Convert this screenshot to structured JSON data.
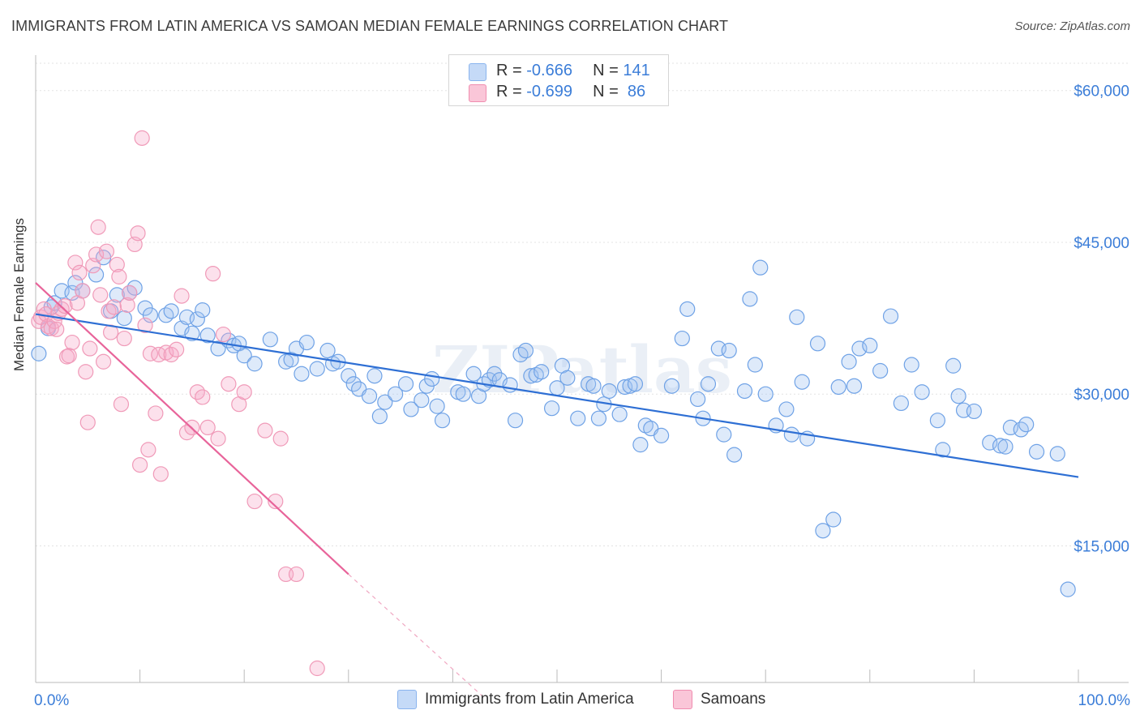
{
  "title": "IMMIGRANTS FROM LATIN AMERICA VS SAMOAN MEDIAN FEMALE EARNINGS CORRELATION CHART",
  "source": "Source: ZipAtlas.com",
  "watermark": "ZIPatlas",
  "legend_top": [
    {
      "r_label": "R = ",
      "r_value": "-0.666",
      "n_label": "N = ",
      "n_value": "141",
      "color": "#8ab4ee",
      "fill": "#c5daf7"
    },
    {
      "r_label": "R = ",
      "r_value": "-0.699",
      "n_label": "N = ",
      "n_value": " 86",
      "color": "#f08db0",
      "fill": "#fac6d8"
    }
  ],
  "chart_data": {
    "type": "scatter",
    "title": "IMMIGRANTS FROM LATIN AMERICA VS SAMOAN MEDIAN FEMALE EARNINGS CORRELATION CHART",
    "xlabel": "",
    "ylabel": "Median Female Earnings",
    "xlim": [
      0,
      100
    ],
    "ylim": [
      1500,
      63500
    ],
    "x_tick_labels": [
      "0.0%",
      "100.0%"
    ],
    "y_ticks": [
      15000,
      30000,
      45000,
      60000
    ],
    "y_tick_labels": [
      "$15,000",
      "$30,000",
      "$45,000",
      "$60,000"
    ],
    "grid": true,
    "legend_position": "bottom",
    "series": [
      {
        "name": "Immigrants from Latin America",
        "color": "#6fa2e6",
        "line_color": "#2e6fd4",
        "trend": {
          "x": [
            0,
            100
          ],
          "y": [
            37900,
            21800
          ]
        },
        "points": [
          [
            0.3,
            34000
          ],
          [
            1.2,
            36500
          ],
          [
            1.5,
            38600
          ],
          [
            1.8,
            39000
          ],
          [
            2.5,
            40200
          ],
          [
            3.5,
            40000
          ],
          [
            3.8,
            41000
          ],
          [
            4.5,
            40200
          ],
          [
            5.8,
            41800
          ],
          [
            6.5,
            43500
          ],
          [
            7.2,
            38200
          ],
          [
            7.8,
            39800
          ],
          [
            8.5,
            37500
          ],
          [
            9.0,
            40000
          ],
          [
            9.5,
            40500
          ],
          [
            10.5,
            38500
          ],
          [
            11.0,
            37800
          ],
          [
            12.5,
            37800
          ],
          [
            13.0,
            38200
          ],
          [
            14.0,
            36500
          ],
          [
            14.5,
            37600
          ],
          [
            15.0,
            36000
          ],
          [
            15.5,
            37400
          ],
          [
            16.0,
            38300
          ],
          [
            16.5,
            35800
          ],
          [
            17.5,
            34500
          ],
          [
            18.5,
            35300
          ],
          [
            19.0,
            34800
          ],
          [
            19.5,
            35000
          ],
          [
            20.0,
            33800
          ],
          [
            21.0,
            33000
          ],
          [
            22.5,
            35400
          ],
          [
            24.0,
            33200
          ],
          [
            24.5,
            33400
          ],
          [
            25.0,
            34500
          ],
          [
            25.5,
            32000
          ],
          [
            26.0,
            35100
          ],
          [
            27.0,
            32500
          ],
          [
            28.0,
            34300
          ],
          [
            28.5,
            33000
          ],
          [
            29.0,
            33200
          ],
          [
            30.0,
            31800
          ],
          [
            30.5,
            31000
          ],
          [
            31.0,
            30500
          ],
          [
            32.0,
            29800
          ],
          [
            32.5,
            31800
          ],
          [
            33.0,
            27800
          ],
          [
            33.5,
            29200
          ],
          [
            34.5,
            30000
          ],
          [
            35.5,
            31000
          ],
          [
            36.0,
            28500
          ],
          [
            37.0,
            29400
          ],
          [
            37.5,
            30800
          ],
          [
            38.0,
            31500
          ],
          [
            38.5,
            28800
          ],
          [
            39.0,
            27400
          ],
          [
            40.5,
            30200
          ],
          [
            41.0,
            30000
          ],
          [
            42.0,
            32000
          ],
          [
            42.5,
            29800
          ],
          [
            43.0,
            31000
          ],
          [
            43.5,
            31400
          ],
          [
            44.0,
            32000
          ],
          [
            44.5,
            31400
          ],
          [
            45.5,
            30900
          ],
          [
            46.0,
            27400
          ],
          [
            46.5,
            33900
          ],
          [
            47.0,
            34300
          ],
          [
            47.5,
            31800
          ],
          [
            48.0,
            31900
          ],
          [
            48.5,
            32200
          ],
          [
            49.5,
            28600
          ],
          [
            50.0,
            30600
          ],
          [
            50.5,
            32800
          ],
          [
            51.0,
            31600
          ],
          [
            52.0,
            27600
          ],
          [
            53.0,
            31000
          ],
          [
            53.5,
            30800
          ],
          [
            54.0,
            27600
          ],
          [
            54.5,
            29000
          ],
          [
            55.0,
            30300
          ],
          [
            56.0,
            28000
          ],
          [
            56.5,
            30700
          ],
          [
            57.0,
            30800
          ],
          [
            57.5,
            31000
          ],
          [
            58.0,
            25000
          ],
          [
            58.5,
            26900
          ],
          [
            59.0,
            26600
          ],
          [
            60.0,
            25900
          ],
          [
            61.0,
            30800
          ],
          [
            62.0,
            35500
          ],
          [
            62.5,
            38400
          ],
          [
            63.5,
            29500
          ],
          [
            64.0,
            27600
          ],
          [
            64.5,
            31000
          ],
          [
            65.5,
            34500
          ],
          [
            66.0,
            26000
          ],
          [
            66.5,
            34300
          ],
          [
            67.0,
            24000
          ],
          [
            68.0,
            30300
          ],
          [
            68.5,
            39400
          ],
          [
            69.0,
            32900
          ],
          [
            69.5,
            42500
          ],
          [
            70.0,
            30000
          ],
          [
            71.0,
            26900
          ],
          [
            72.0,
            28500
          ],
          [
            72.5,
            26000
          ],
          [
            73.0,
            37600
          ],
          [
            73.5,
            31200
          ],
          [
            74.0,
            25600
          ],
          [
            75.0,
            35000
          ],
          [
            75.5,
            16500
          ],
          [
            76.5,
            17600
          ],
          [
            77.0,
            30700
          ],
          [
            78.0,
            33200
          ],
          [
            78.5,
            30800
          ],
          [
            79.0,
            34500
          ],
          [
            80.0,
            34800
          ],
          [
            81.0,
            32300
          ],
          [
            82.0,
            37700
          ],
          [
            83.0,
            29100
          ],
          [
            84.0,
            32900
          ],
          [
            85.0,
            30200
          ],
          [
            86.5,
            27400
          ],
          [
            87.0,
            24500
          ],
          [
            88.0,
            32800
          ],
          [
            88.5,
            29800
          ],
          [
            89.0,
            28400
          ],
          [
            90.0,
            28300
          ],
          [
            91.5,
            25200
          ],
          [
            92.5,
            24900
          ],
          [
            93.0,
            24800
          ],
          [
            93.5,
            26700
          ],
          [
            94.5,
            26500
          ],
          [
            95.0,
            27000
          ],
          [
            96.0,
            24300
          ],
          [
            98.0,
            24100
          ],
          [
            99.0,
            10700
          ]
        ]
      },
      {
        "name": "Samoans",
        "color": "#f09ab8",
        "line_color": "#e8649a",
        "trend": {
          "x": [
            0,
            30
          ],
          "y": [
            41000,
            12200
          ]
        },
        "trend_dashed": {
          "x": [
            30,
            43
          ],
          "y": [
            12200,
            0
          ]
        },
        "points": [
          [
            0.3,
            37200
          ],
          [
            0.5,
            37600
          ],
          [
            0.8,
            38400
          ],
          [
            1.0,
            37900
          ],
          [
            1.2,
            36700
          ],
          [
            1.5,
            36500
          ],
          [
            1.8,
            37200
          ],
          [
            2.0,
            36400
          ],
          [
            2.2,
            38000
          ],
          [
            2.5,
            38400
          ],
          [
            2.8,
            38700
          ],
          [
            3.0,
            33700
          ],
          [
            3.2,
            33800
          ],
          [
            3.5,
            35100
          ],
          [
            3.8,
            43000
          ],
          [
            4.0,
            39000
          ],
          [
            4.2,
            42000
          ],
          [
            4.5,
            40200
          ],
          [
            4.8,
            32200
          ],
          [
            5.0,
            27200
          ],
          [
            5.2,
            34500
          ],
          [
            5.5,
            42700
          ],
          [
            5.8,
            43800
          ],
          [
            6.0,
            46500
          ],
          [
            6.2,
            39800
          ],
          [
            6.5,
            33200
          ],
          [
            6.8,
            44100
          ],
          [
            7.0,
            38200
          ],
          [
            7.2,
            36100
          ],
          [
            7.5,
            38600
          ],
          [
            7.8,
            42800
          ],
          [
            8.0,
            41600
          ],
          [
            8.2,
            29000
          ],
          [
            8.5,
            35500
          ],
          [
            8.8,
            38800
          ],
          [
            9.0,
            40000
          ],
          [
            9.5,
            44800
          ],
          [
            9.8,
            45900
          ],
          [
            10.0,
            23000
          ],
          [
            10.2,
            55300
          ],
          [
            10.5,
            36800
          ],
          [
            10.8,
            24500
          ],
          [
            11.0,
            34000
          ],
          [
            11.5,
            28100
          ],
          [
            11.8,
            33900
          ],
          [
            12.0,
            22100
          ],
          [
            12.5,
            34100
          ],
          [
            13.0,
            33900
          ],
          [
            13.5,
            34400
          ],
          [
            14.0,
            39700
          ],
          [
            14.5,
            26200
          ],
          [
            15.0,
            26700
          ],
          [
            15.5,
            30200
          ],
          [
            16.0,
            29700
          ],
          [
            16.5,
            26700
          ],
          [
            17.0,
            41900
          ],
          [
            17.5,
            25600
          ],
          [
            18.0,
            35900
          ],
          [
            18.5,
            31000
          ],
          [
            19.5,
            29000
          ],
          [
            20.0,
            30200
          ],
          [
            21.0,
            19400
          ],
          [
            22.0,
            26400
          ],
          [
            23.0,
            19400
          ],
          [
            23.5,
            25600
          ],
          [
            24.0,
            12200
          ],
          [
            25.0,
            12200
          ],
          [
            27.0,
            2900
          ]
        ]
      }
    ]
  }
}
